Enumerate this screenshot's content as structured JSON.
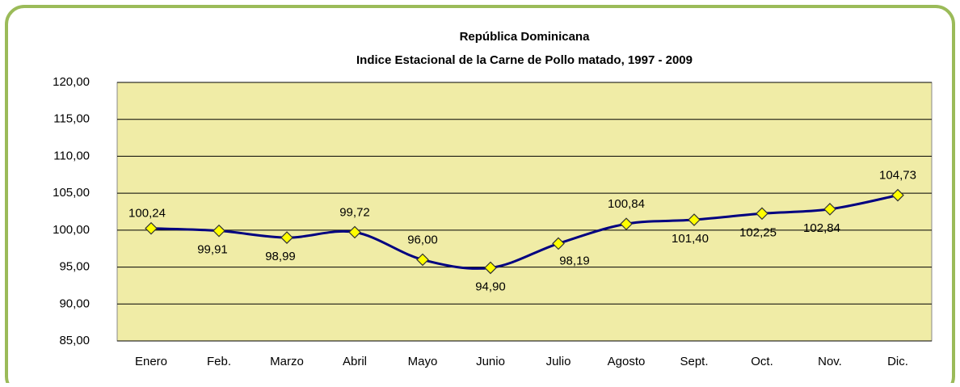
{
  "chart_data": {
    "type": "line",
    "title": "República Dominicana",
    "subtitle": "Indice  Estacional de la Carne de Pollo matado, 1997 - 2009",
    "categories": [
      "Enero",
      "Feb.",
      "Marzo",
      "Abril",
      "Mayo",
      "Junio",
      "Julio",
      "Agosto",
      "Sept.",
      "Oct.",
      "Nov.",
      "Dic."
    ],
    "series": [
      {
        "name": "Indice Estacional",
        "color": "#000080",
        "values": [
          100.24,
          99.91,
          98.99,
          99.72,
          96.0,
          94.9,
          98.19,
          100.84,
          101.4,
          102.25,
          102.84,
          104.73
        ],
        "value_labels": [
          "100,24",
          "99,91",
          "98,99",
          "99,72",
          "96,00",
          "94,90",
          "98,19",
          "100,84",
          "101,40",
          "102,25",
          "102,84",
          "104,73"
        ]
      }
    ],
    "ylim": [
      85,
      120
    ],
    "yticks": [
      {
        "value": 85,
        "label": "85,00"
      },
      {
        "value": 90,
        "label": "90,00"
      },
      {
        "value": 95,
        "label": "95,00"
      },
      {
        "value": 100,
        "label": "100,00"
      },
      {
        "value": 105,
        "label": "105,00"
      },
      {
        "value": 110,
        "label": "110,00"
      },
      {
        "value": 115,
        "label": "115,00"
      },
      {
        "value": 120,
        "label": "120,00"
      }
    ],
    "grid": true,
    "marker_color": "#ffff00",
    "plot_background": "#f0eca6"
  }
}
